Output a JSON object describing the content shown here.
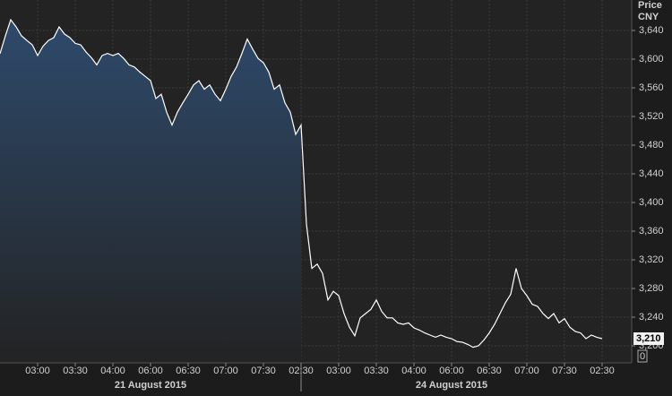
{
  "chart_data": {
    "type": "line",
    "axis_title": "Price",
    "currency": "CNY",
    "days": [
      "21 August 2015",
      "24 August 2015"
    ],
    "values": [
      3607.5,
      3632.5,
      3655,
      3645,
      3632.5,
      3626,
      3620,
      3605,
      3618,
      3626,
      3630,
      3645,
      3635,
      3630,
      3622,
      3620,
      3610,
      3602,
      3592,
      3605,
      3608,
      3605,
      3608,
      3601,
      3592,
      3589,
      3582,
      3576,
      3570,
      3545,
      3551,
      3526,
      3508,
      3526,
      3539,
      3551,
      3564,
      3570,
      3558,
      3564,
      3551,
      3542,
      3558,
      3576,
      3589,
      3608,
      3628,
      3614,
      3601,
      3595,
      3582,
      3558,
      3564,
      3539,
      3526,
      3495,
      3508,
      3370,
      3308,
      3314,
      3301,
      3264,
      3276,
      3270,
      3245,
      3226,
      3214,
      3239,
      3245,
      3251,
      3264,
      3248,
      3239,
      3239,
      3232,
      3230,
      3232,
      3225,
      3222,
      3218,
      3215,
      3212,
      3215,
      3212,
      3210,
      3206,
      3205,
      3202,
      3198,
      3200,
      3208,
      3218,
      3230,
      3245,
      3260,
      3272,
      3308,
      3280,
      3270,
      3258,
      3255,
      3245,
      3238,
      3245,
      3232,
      3238,
      3226,
      3220,
      3218,
      3210,
      3215,
      3212,
      3210
    ],
    "fill_until": 56,
    "color": "#ffffff",
    "fill_color": "#2e4a6b",
    "xlim": [
      0,
      117.5
    ],
    "xticks": [
      {
        "value": 7,
        "label": "03:00"
      },
      {
        "value": 14,
        "label": "03:30"
      },
      {
        "value": 21,
        "label": "04:00"
      },
      {
        "value": 28,
        "label": "06:00"
      },
      {
        "value": 35,
        "label": "06:30"
      },
      {
        "value": 42,
        "label": "07:00"
      },
      {
        "value": 49,
        "label": "07:30"
      },
      {
        "value": 56,
        "label": "02:30"
      },
      {
        "value": 63,
        "label": "03:00"
      },
      {
        "value": 70,
        "label": "03:30"
      },
      {
        "value": 77,
        "label": "04:00"
      },
      {
        "value": 84,
        "label": "06:00"
      },
      {
        "value": 91,
        "label": "06:30"
      },
      {
        "value": 98,
        "label": "07:00"
      },
      {
        "value": 105,
        "label": "07:30"
      },
      {
        "value": 112,
        "label": "02:30"
      }
    ],
    "ylim": [
      3176.25,
      3682.5
    ],
    "yticks": [
      {
        "value": 3200,
        "label": "3,200"
      },
      {
        "value": 3240,
        "label": "3,240"
      },
      {
        "value": 3280,
        "label": "3,280"
      },
      {
        "value": 3320,
        "label": "3,320"
      },
      {
        "value": 3360,
        "label": "3,360"
      },
      {
        "value": 3400,
        "label": "3,400"
      },
      {
        "value": 3440,
        "label": "3,440"
      },
      {
        "value": 3480,
        "label": "3,480"
      },
      {
        "value": 3520,
        "label": "3,520"
      },
      {
        "value": 3560,
        "label": "3,560"
      },
      {
        "value": 3600,
        "label": "3,600"
      },
      {
        "value": 3640,
        "label": "3,640"
      }
    ],
    "last_price": {
      "value": 3210,
      "label": "3,210"
    },
    "lower_label": "0",
    "grid": true
  }
}
